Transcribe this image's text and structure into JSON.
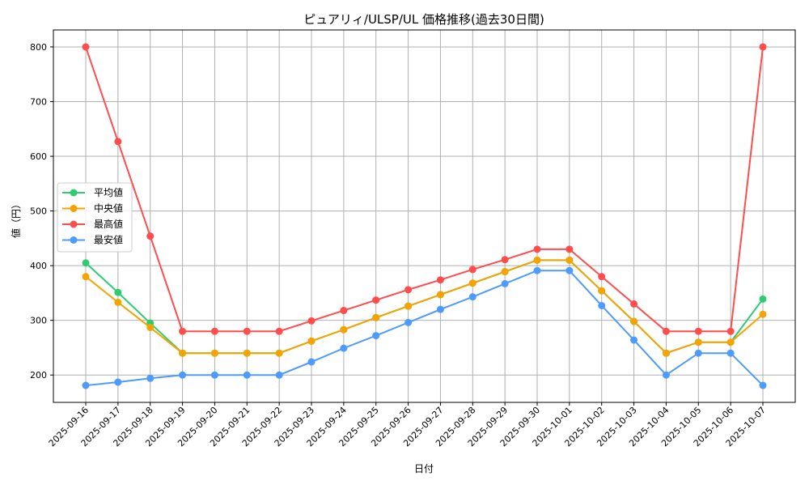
{
  "chart_data": {
    "type": "line",
    "title": "ピュアリィ/ULSP/UL 価格推移(過去30日間)",
    "xlabel": "日付",
    "ylabel": "値（円）",
    "ylim": [
      150,
      831
    ],
    "yticks": [
      200,
      300,
      400,
      500,
      600,
      700,
      800
    ],
    "grid": true,
    "legend_position": "center-left",
    "categories": [
      "2025-09-16",
      "2025-09-17",
      "2025-09-18",
      "2025-09-19",
      "2025-09-20",
      "2025-09-21",
      "2025-09-22",
      "2025-09-23",
      "2025-09-24",
      "2025-09-25",
      "2025-09-26",
      "2025-09-27",
      "2025-09-28",
      "2025-09-29",
      "2025-09-30",
      "2025-10-01",
      "2025-10-02",
      "2025-10-03",
      "2025-10-04",
      "2025-10-05",
      "2025-10-06",
      "2025-10-07"
    ],
    "series": [
      {
        "name": "平均値",
        "color": "#2ecc71",
        "values": [
          405,
          351,
          295,
          240,
          240,
          240,
          240,
          262,
          283,
          305,
          326,
          347,
          368,
          389,
          410,
          410,
          354,
          298,
          240,
          260,
          260,
          339
        ]
      },
      {
        "name": "中央値",
        "color": "#f5a300",
        "values": [
          380,
          333,
          287,
          240,
          240,
          240,
          240,
          262,
          283,
          305,
          326,
          347,
          368,
          389,
          410,
          410,
          354,
          298,
          240,
          260,
          260,
          311
        ]
      },
      {
        "name": "最高値",
        "color": "#ff4d4d",
        "values": [
          800,
          627,
          454,
          280,
          280,
          280,
          280,
          299,
          318,
          337,
          356,
          374,
          393,
          411,
          430,
          430,
          380,
          330,
          280,
          280,
          280,
          800
        ]
      },
      {
        "name": "最安値",
        "color": "#4d9bff",
        "values": [
          181,
          187,
          194,
          200,
          200,
          200,
          200,
          224,
          249,
          272,
          296,
          320,
          343,
          367,
          391,
          391,
          327,
          264,
          200,
          240,
          240,
          181
        ]
      }
    ]
  }
}
